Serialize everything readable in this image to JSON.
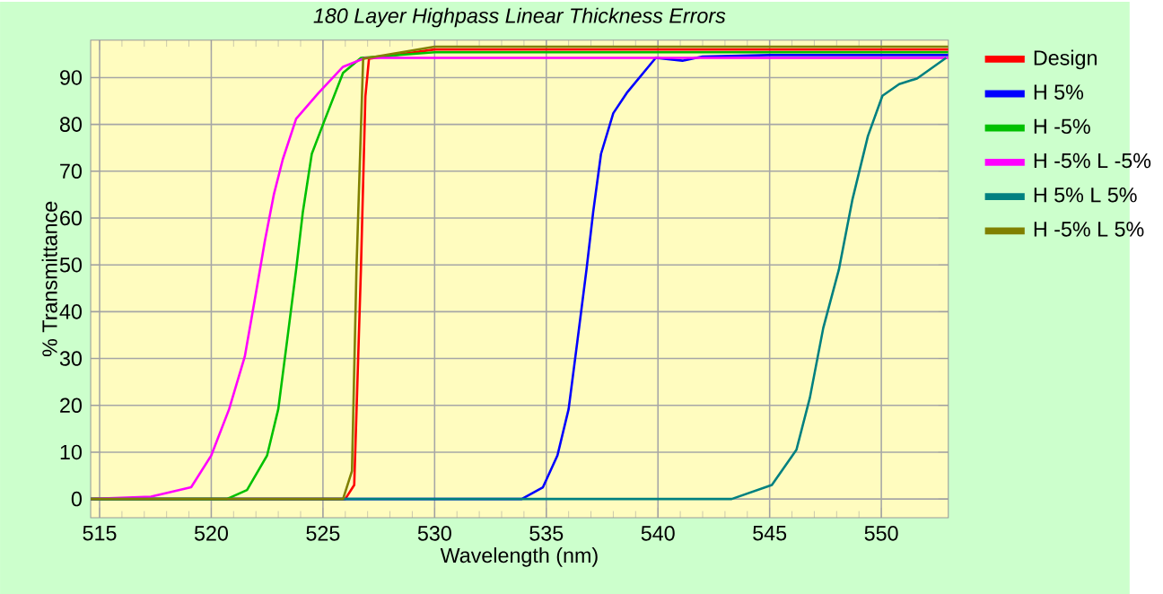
{
  "chart_data": {
    "type": "line",
    "title": "180 Layer Highpass Linear Thickness Errors",
    "xlabel": "Wavelength (nm)",
    "ylabel": "% Transmittance",
    "xlim": [
      514.6,
      553
    ],
    "ylim": [
      -4,
      98
    ],
    "xticks": [
      515,
      520,
      525,
      530,
      535,
      540,
      545,
      550
    ],
    "yticks": [
      0,
      10,
      20,
      30,
      40,
      50,
      60,
      70,
      80,
      90
    ],
    "grid": true,
    "legend": "right",
    "series": [
      {
        "name": "Design",
        "color": "#ff0000",
        "x": [
          514.6,
          526.0,
          526.4,
          526.7,
          526.9,
          527.06,
          530,
          535,
          540,
          545,
          550,
          553
        ],
        "values": [
          0,
          0,
          3,
          49,
          86,
          94,
          96,
          96,
          96,
          96,
          96,
          96
        ]
      },
      {
        "name": "H 5%",
        "color": "#0000ff",
        "x": [
          514.6,
          533.9,
          534.85,
          535.5,
          536.0,
          536.4,
          536.8,
          537.1,
          537.45,
          538.0,
          538.6,
          539.9,
          541.1,
          542.0,
          545,
          550,
          553
        ],
        "values": [
          0,
          0,
          2.5,
          9.3,
          19.2,
          34,
          49,
          61.3,
          73.7,
          82.4,
          86.7,
          94.2,
          93.6,
          94.5,
          94.8,
          94.8,
          94.8
        ]
      },
      {
        "name": "H -5%",
        "color": "#00c000",
        "x": [
          514.6,
          520.7,
          521.6,
          522.5,
          523.0,
          523.4,
          523.8,
          524.1,
          524.5,
          525.1,
          525.9,
          526.7,
          530,
          540,
          553
        ],
        "values": [
          0,
          0,
          1.9,
          9.3,
          19.2,
          34,
          49,
          61.3,
          73.7,
          81.2,
          91,
          94.2,
          95.4,
          95.4,
          95.4
        ]
      },
      {
        "name": "H -5% L -5%",
        "color": "#ff00ff",
        "x": [
          514.6,
          517.3,
          519.1,
          520.0,
          520.8,
          521.5,
          522.0,
          522.4,
          522.8,
          523.2,
          523.8,
          524.8,
          525.9,
          526.9,
          530,
          540,
          553
        ],
        "values": [
          0,
          0.5,
          2.5,
          9.3,
          19.2,
          30.4,
          44,
          55.1,
          65,
          72.5,
          81.2,
          86.7,
          92.3,
          94.2,
          94.2,
          94.2,
          94.2
        ]
      },
      {
        "name": "H 5% L 5%",
        "color": "#008080",
        "x": [
          514.6,
          543.3,
          545.1,
          546.2,
          546.8,
          547.4,
          548.1,
          548.7,
          549.4,
          550.05,
          550.8,
          551.6,
          552.9
        ],
        "values": [
          0,
          0,
          3,
          10.5,
          21.6,
          36.5,
          49,
          63.8,
          77.5,
          86.1,
          88.6,
          89.8,
          94.2
        ]
      },
      {
        "name": "H -5% L 5%",
        "color": "#808000",
        "x": [
          514.6,
          525.9,
          526.3,
          526.5,
          526.8,
          530,
          540,
          553
        ],
        "values": [
          0,
          0,
          6,
          49,
          94,
          96.6,
          96.6,
          96.6
        ]
      }
    ]
  }
}
